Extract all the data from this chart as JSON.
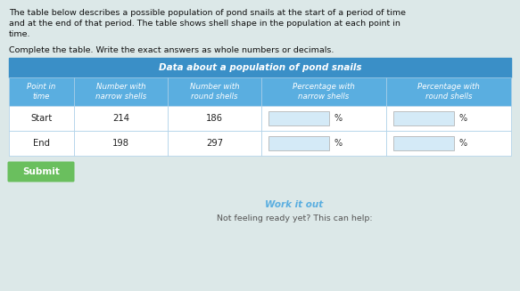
{
  "page_bg": "#dce8e8",
  "header_text_line1": "The table below describes a possible population of pond snails at the start of a period of time",
  "header_text_line2": "and at the end of that period. The table shows shell shape in the population at each point in",
  "header_text_line3": "time.",
  "instruction_text": "Complete the table. Write the exact answers as whole numbers or decimals.",
  "table_title": "Data about a population of pond snails",
  "table_title_bg": "#3a8fc7",
  "table_title_color": "white",
  "col_header_bg": "#5aaee0",
  "col_header_color": "white",
  "col_headers": [
    "Point in\ntime",
    "Number with\nnarrow shells",
    "Number with\nround shells",
    "Percentage with\nnarrow shells",
    "Percentage with\nround shells"
  ],
  "row_bg": "#ffffff",
  "row_labels": [
    "Start",
    "End"
  ],
  "narrow_vals": [
    "214",
    "198"
  ],
  "round_vals": [
    "186",
    "297"
  ],
  "submit_bg": "#6abf5e",
  "submit_text": "Submit",
  "submit_color": "white",
  "work_it_out_color": "#5aaee0",
  "work_it_out_text": "Work it out",
  "not_ready_text": "Not feeling ready yet? This can help:",
  "not_ready_color": "#555555",
  "input_box_color": "#d4eaf7",
  "border_color": "#3a8fc7",
  "cell_border_color": "#aacfe8"
}
